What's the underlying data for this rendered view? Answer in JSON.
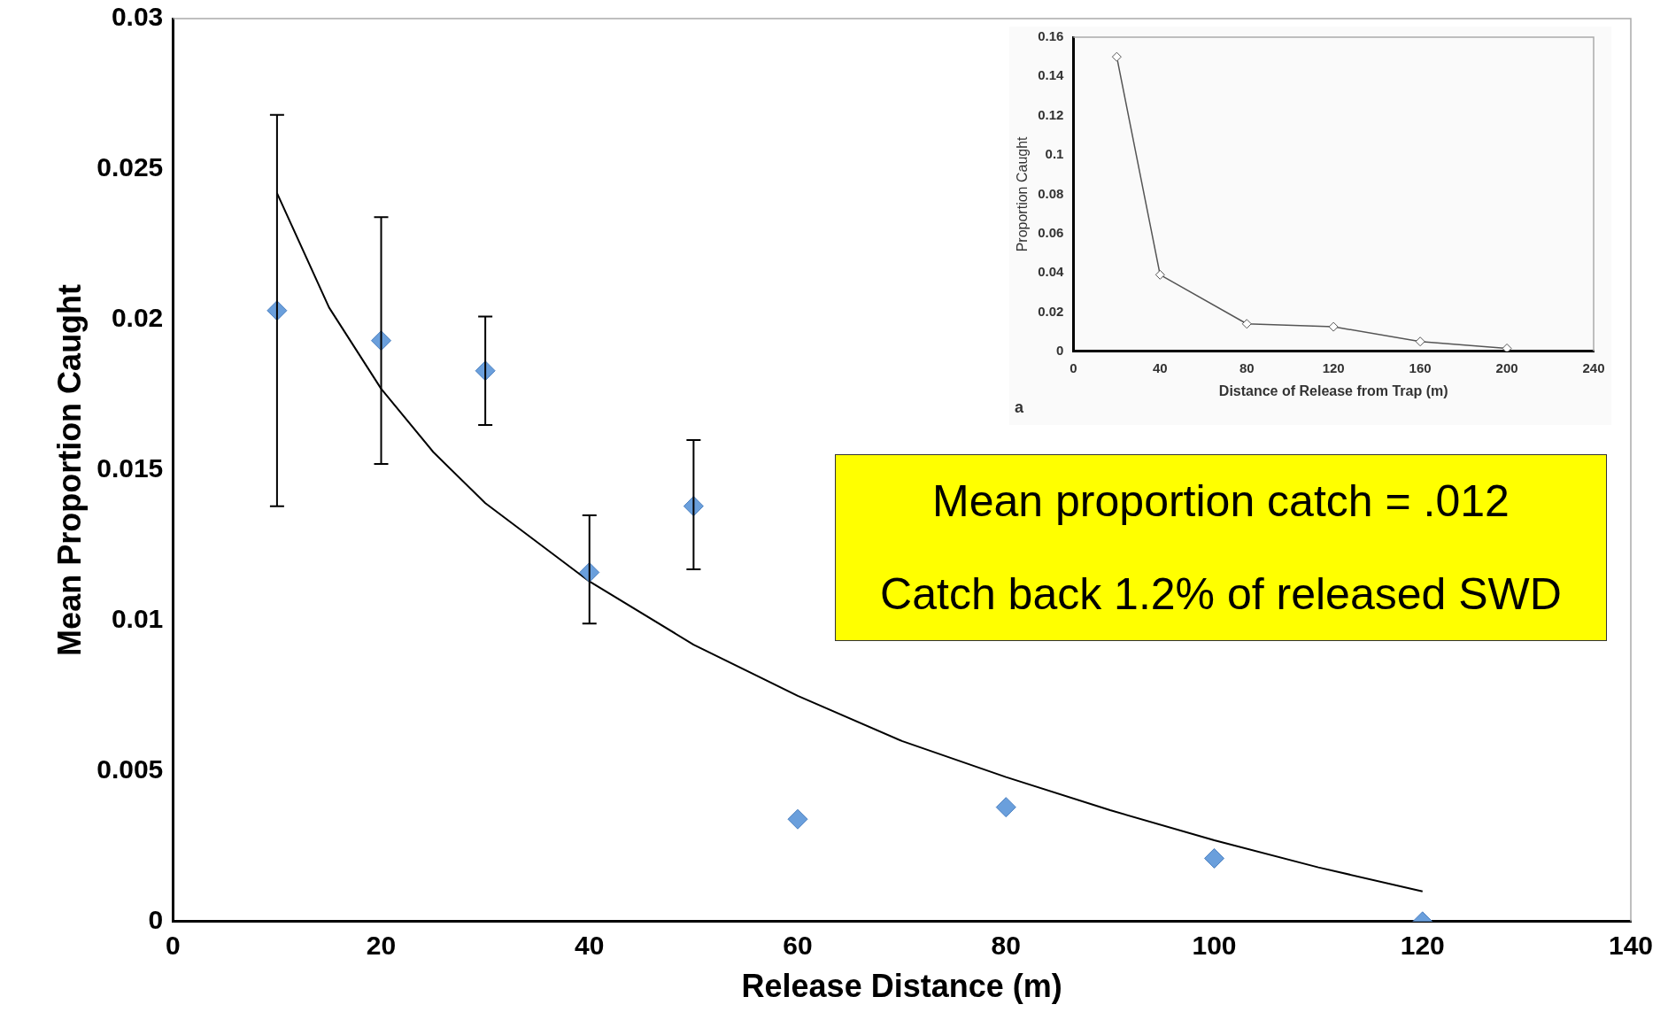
{
  "chart_data": [
    {
      "type": "scatter",
      "xlabel": "Release Distance (m)",
      "ylabel": "Mean Proportion Caught",
      "xlim": [
        0,
        140
      ],
      "xticks": [
        0,
        20,
        40,
        60,
        80,
        100,
        120,
        140
      ],
      "ylim": [
        0,
        0.03
      ],
      "yticks": [
        0,
        0.005,
        0.01,
        0.015,
        0.02,
        0.025,
        0.03
      ],
      "marker": "diamond",
      "annotations": [
        "Mean proportion catch = .012",
        "Catch back 1.2% of released SWD"
      ],
      "series": [
        {
          "type": "scatter",
          "color": "#6a9fdc",
          "x": [
            10,
            20,
            30,
            40,
            50,
            60,
            80,
            100,
            120
          ],
          "values": [
            0.0203,
            0.0193,
            0.0183,
            0.0116,
            0.0138,
            0.0034,
            0.0038,
            0.0021,
            0
          ],
          "errors": [
            [
              0.0138,
              0.0268
            ],
            [
              0.0152,
              0.0234
            ],
            [
              0.0165,
              0.0201
            ],
            [
              0.0099,
              0.0135
            ],
            [
              0.0117,
              0.016
            ],
            null,
            null,
            null,
            null
          ]
        },
        {
          "type": "line",
          "color": "#000000",
          "marker": "none",
          "line_style": "solid",
          "x": [
            10,
            15,
            20,
            25,
            30,
            40,
            50,
            60,
            70,
            80,
            90,
            100,
            110,
            120
          ],
          "values": [
            0.0242,
            0.0204,
            0.0177,
            0.0156,
            0.0139,
            0.0113,
            0.0092,
            0.0075,
            0.006,
            0.0048,
            0.0037,
            0.0027,
            0.0018,
            0.001
          ]
        }
      ]
    },
    {
      "type": "line",
      "xlabel": "Distance of Release from Trap (m)",
      "ylabel": "Proportion Caught",
      "xlim": [
        0,
        240
      ],
      "xticks": [
        0,
        40,
        80,
        120,
        160,
        200,
        240
      ],
      "ylim": [
        0,
        0.16
      ],
      "yticks": [
        0,
        0.02,
        0.04,
        0.06,
        0.08,
        0.1,
        0.12,
        0.14,
        0.16
      ],
      "marker": "diamond",
      "line_style": "solid",
      "annotations": [
        "a"
      ],
      "series": [
        {
          "color": "#555555",
          "x": [
            20,
            40,
            80,
            120,
            160,
            200
          ],
          "values": [
            0.15,
            0.039,
            0.014,
            0.0125,
            0.005,
            0.0015
          ]
        }
      ]
    }
  ]
}
